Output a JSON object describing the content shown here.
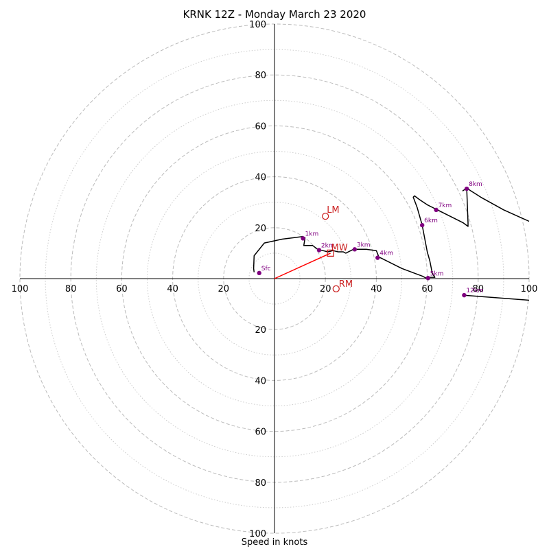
{
  "chart_data": {
    "type": "hodograph",
    "title": "KRNK 12Z - Monday March 23 2020",
    "xlabel": "Speed in knots",
    "ring_max": 100,
    "ring_major": [
      20,
      40,
      60,
      80,
      100
    ],
    "ring_minor": [
      10,
      30,
      50,
      70,
      90
    ],
    "tick_values": [
      20,
      40,
      60,
      80,
      100
    ],
    "colors": {
      "profile": "#000000",
      "height_marker": "#800080",
      "storm_motion": "#cc2222",
      "mean_wind_vector": "#ff0000",
      "grid_major": "#bbbbbb",
      "grid_minor": "#cccccc"
    },
    "profile": [
      [
        -8,
        2.5
      ],
      [
        -8.2,
        4
      ],
      [
        -8,
        9
      ],
      [
        -4,
        14
      ],
      [
        3,
        15.5
      ],
      [
        11,
        16.5
      ],
      [
        12,
        16
      ],
      [
        11.5,
        13
      ],
      [
        15,
        13
      ],
      [
        17,
        11.5
      ],
      [
        19,
        11
      ],
      [
        21,
        10.5
      ],
      [
        23,
        11
      ],
      [
        25,
        10.5
      ],
      [
        27,
        10.5
      ],
      [
        28,
        10
      ],
      [
        31,
        11.5
      ],
      [
        33,
        11.5
      ],
      [
        36,
        11.5
      ],
      [
        40,
        11
      ],
      [
        41,
        8.5
      ],
      [
        42,
        8
      ],
      [
        50,
        4
      ],
      [
        58,
        1
      ],
      [
        60,
        0
      ],
      [
        61,
        0.5
      ],
      [
        63,
        0.5
      ],
      [
        62,
        2
      ],
      [
        61,
        7
      ],
      [
        60,
        10.5
      ],
      [
        58,
        21
      ],
      [
        56,
        28
      ],
      [
        54.5,
        32
      ],
      [
        55,
        32.5
      ],
      [
        57,
        31
      ],
      [
        60,
        29
      ],
      [
        63,
        27.5
      ],
      [
        68,
        25
      ],
      [
        74,
        22
      ],
      [
        76,
        20.5
      ],
      [
        76,
        22
      ],
      [
        75.5,
        35.5
      ],
      [
        74,
        34.5
      ],
      [
        75.5,
        35.5
      ],
      [
        81,
        32
      ],
      [
        90,
        27
      ],
      [
        100,
        22.5
      ]
    ],
    "profile_tail": [
      [
        74,
        -6.5
      ],
      [
        100,
        -8.5
      ]
    ],
    "height_markers": [
      {
        "label": "Sfc",
        "u": -6,
        "v": 2.2
      },
      {
        "label": "1km",
        "u": 11.2,
        "v": 15.8
      },
      {
        "label": "2km",
        "u": 17.5,
        "v": 11.2
      },
      {
        "label": "3km",
        "u": 31.5,
        "v": 11.5
      },
      {
        "label": "4km",
        "u": 40.5,
        "v": 8.2
      },
      {
        "label": "5km",
        "u": 60.3,
        "v": 0.2
      },
      {
        "label": "6km",
        "u": 58,
        "v": 21
      },
      {
        "label": "7km",
        "u": 63.5,
        "v": 27
      },
      {
        "label": "8km",
        "u": 75.5,
        "v": 35.3
      },
      {
        "label": "12km",
        "u": 74.5,
        "v": -6.5
      }
    ],
    "storm_motion": {
      "LM": {
        "label": "LM",
        "u": 20,
        "v": 24.5
      },
      "RM": {
        "label": "RM",
        "u": 24.2,
        "v": -4
      },
      "MW": {
        "label": "MW",
        "u": 22,
        "v": 10
      }
    }
  }
}
